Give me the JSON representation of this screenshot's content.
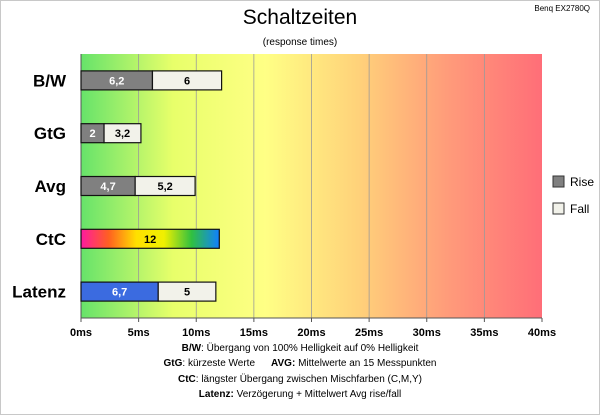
{
  "chart_data": {
    "type": "bar",
    "title": "Schaltzeiten",
    "subtitle": "(response times)",
    "model": "Benq EX2780Q",
    "x_unit": "ms",
    "xlim": [
      0,
      40
    ],
    "x_ticks": [
      "0ms",
      "5ms",
      "10ms",
      "15ms",
      "20ms",
      "25ms",
      "30ms",
      "35ms",
      "40ms"
    ],
    "grid": true,
    "legend_position": "right",
    "categories": [
      "B/W",
      "GtG",
      "Avg",
      "CtC",
      "Latenz"
    ],
    "series": [
      {
        "name": "Rise",
        "color": "#808080",
        "values": [
          6.2,
          2,
          4.7,
          null,
          null
        ],
        "labels": [
          "6,2",
          "2",
          "4,7",
          "",
          ""
        ]
      },
      {
        "name": "Fall",
        "color": "#f2f2ea",
        "values": [
          6,
          3.2,
          5.2,
          null,
          5
        ],
        "labels": [
          "6",
          "3,2",
          "5,2",
          "",
          "5"
        ]
      }
    ],
    "special_bars": [
      {
        "category": "CtC",
        "value": 12,
        "label": "12",
        "fill": "rainbow"
      },
      {
        "category": "Latenz",
        "value": 6.7,
        "label": "6,7",
        "fill": "#3b6be0"
      }
    ]
  },
  "footer": {
    "bw_key": "B/W",
    "bw_text": ":  Übergang von 100% Helligkeit auf 0% Helligkeit",
    "gtg_key": "GtG",
    "gtg_text": ": kürzeste  Werte",
    "avg_key": "AVG:",
    "avg_text": " Mittelwerte  an 15 Messpunkten",
    "ctc_key": "CtC",
    "ctc_text": ": längster Übergang  zwischen Mischfarben  (C,M,Y)",
    "lat_key": "Latenz:",
    "lat_text": " Verzögerung  + Mittelwert Avg rise/fall"
  },
  "colors": {
    "rainbow": [
      "#ff1aa0",
      "#ff6020",
      "#ffe000",
      "#f0f000",
      "#30c040",
      "#1080ff"
    ],
    "background_gradient": [
      "#66e36a",
      "#e8ff6a",
      "#ffff85",
      "#ffd27a",
      "#ff9a7a",
      "#ff6e78"
    ],
    "rise": "#808080",
    "fall": "#f2f2ea",
    "latency": "#3b6be0"
  }
}
